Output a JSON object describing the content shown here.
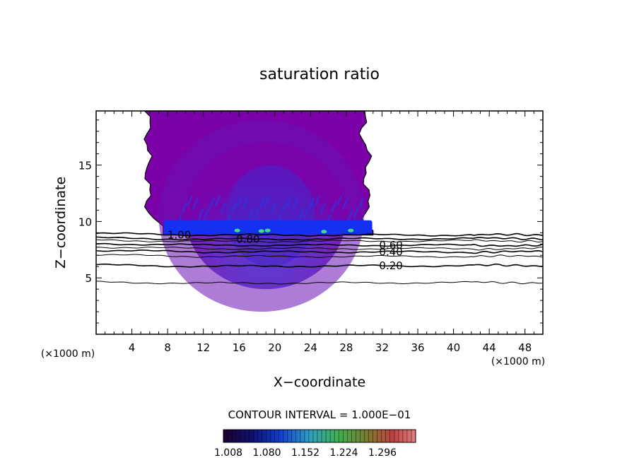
{
  "chart_data": {
    "type": "heatmap",
    "title": "saturation ratio",
    "xlabel": "X−coordinate",
    "ylabel": "Z−coordinate",
    "x_unit_left": "(×1000 m)",
    "x_unit_right": "(×1000 m)",
    "xlim": [
      0,
      50
    ],
    "ylim": [
      0,
      19.8
    ],
    "x_ticks": [
      4,
      8,
      12,
      16,
      20,
      24,
      28,
      32,
      36,
      40,
      44,
      48
    ],
    "y_ticks": [
      5,
      10,
      15
    ],
    "contour_interval_text": "CONTOUR INTERVAL = 1.000E−01",
    "colorbar": {
      "tick_labels": [
        "1.008",
        "1.080",
        "1.152",
        "1.224",
        "1.296"
      ],
      "range": [
        1.008,
        1.33
      ]
    },
    "filled_region": {
      "description_values": "supersaturated cloud region",
      "x_range": [
        5.5,
        31
      ],
      "z_range": [
        8.8,
        19.8
      ],
      "dominant_value": 1.01
    },
    "contours": [
      {
        "label": "1.00",
        "level": 1.0,
        "z_left": 8.8,
        "z_right": 8.8,
        "label_x": 9.3
      },
      {
        "label": "0.80",
        "level": 0.8,
        "z_left": 8.4,
        "z_right": 8.5,
        "label_x": 17.0
      },
      {
        "label": "",
        "level": 0.7,
        "z_left": 8.2,
        "z_right": 8.3
      },
      {
        "label": "0.60",
        "level": 0.6,
        "z_left": 7.9,
        "z_right": 7.9,
        "label_x": 33.0
      },
      {
        "label": "",
        "level": 0.5,
        "z_left": 7.6,
        "z_right": 7.6
      },
      {
        "label": "0.40",
        "level": 0.4,
        "z_left": 7.3,
        "z_right": 7.3,
        "label_x": 33.0
      },
      {
        "label": "",
        "level": 0.3,
        "z_left": 6.9,
        "z_right": 6.9
      },
      {
        "label": "0.20",
        "level": 0.2,
        "z_left": 6.0,
        "z_right": 6.1,
        "label_x": 33.0
      },
      {
        "label": "",
        "level": 0.1,
        "z_left": 4.5,
        "z_right": 4.6
      }
    ]
  },
  "colors": {
    "fill_main": "#7c00a8",
    "fill_mid": "#6a10b4",
    "fill_inner": "#5a1cc0",
    "fill_base": "#1430f0",
    "highlight": "#40e080"
  }
}
